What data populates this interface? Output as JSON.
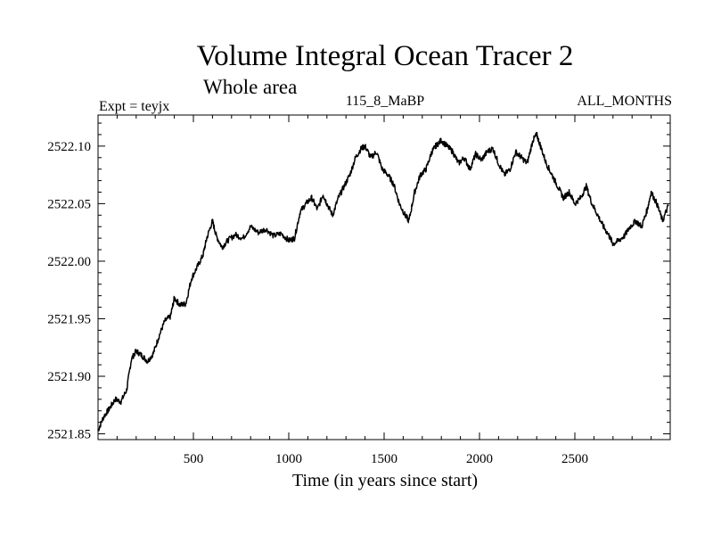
{
  "chart_data": {
    "type": "line",
    "title": "Volume Integral Ocean Tracer 2",
    "subtitle": "Whole area",
    "experiment": "Expt = teyjx",
    "period": "115_8_MaBP",
    "months": "ALL_MONTHS",
    "xlabel": "Time (in years since start)",
    "ylabel": "",
    "xlim": [
      0,
      3000
    ],
    "ylim": [
      2521.845,
      2522.127
    ],
    "xticks": [
      500,
      1000,
      1500,
      2000,
      2500
    ],
    "xtick_labels": [
      "500",
      "1000",
      "1500",
      "2000",
      "2500"
    ],
    "yticks": [
      2521.85,
      2521.9,
      2521.95,
      2522.0,
      2522.05,
      2522.1
    ],
    "ytick_labels": [
      "2521.85",
      "2521.90",
      "2521.95",
      "2522.00",
      "2522.05",
      "2522.10"
    ],
    "grid": false,
    "legend": "none",
    "series": [
      {
        "color": "#000000",
        "x": [
          0,
          30,
          60,
          90,
          120,
          150,
          175,
          200,
          230,
          260,
          290,
          320,
          350,
          380,
          400,
          430,
          460,
          490,
          520,
          550,
          570,
          600,
          620,
          650,
          680,
          720,
          760,
          800,
          840,
          880,
          920,
          960,
          1000,
          1030,
          1060,
          1090,
          1120,
          1150,
          1180,
          1200,
          1230,
          1260,
          1290,
          1320,
          1350,
          1380,
          1400,
          1430,
          1460,
          1490,
          1520,
          1550,
          1580,
          1610,
          1630,
          1660,
          1690,
          1720,
          1750,
          1770,
          1800,
          1830,
          1860,
          1890,
          1920,
          1950,
          1980,
          2010,
          2040,
          2070,
          2100,
          2130,
          2160,
          2190,
          2220,
          2250,
          2280,
          2300,
          2320,
          2350,
          2380,
          2410,
          2440,
          2470,
          2500,
          2530,
          2560,
          2590,
          2620,
          2650,
          2680,
          2700,
          2730,
          2760,
          2790,
          2820,
          2850,
          2880,
          2900,
          2930,
          2960,
          2990
        ],
        "y": [
          2521.853,
          2521.865,
          2521.872,
          2521.88,
          2521.878,
          2521.888,
          2521.915,
          2521.922,
          2521.918,
          2521.913,
          2521.92,
          2521.935,
          2521.948,
          2521.952,
          2521.968,
          2521.962,
          2521.963,
          2521.985,
          2521.995,
          2522.005,
          2522.02,
          2522.035,
          2522.022,
          2522.012,
          2522.018,
          2522.023,
          2522.02,
          2522.03,
          2522.025,
          2522.028,
          2522.022,
          2522.024,
          2522.018,
          2522.02,
          2522.043,
          2522.05,
          2522.055,
          2522.045,
          2522.058,
          2522.05,
          2522.04,
          2522.055,
          2522.065,
          2522.075,
          2522.09,
          2522.098,
          2522.1,
          2522.09,
          2522.095,
          2522.08,
          2522.075,
          2522.067,
          2522.05,
          2522.04,
          2522.035,
          2522.06,
          2522.075,
          2522.08,
          2522.095,
          2522.1,
          2522.105,
          2522.1,
          2522.095,
          2522.085,
          2522.09,
          2522.08,
          2522.093,
          2522.088,
          2522.095,
          2522.098,
          2522.085,
          2522.075,
          2522.08,
          2522.095,
          2522.09,
          2522.085,
          2522.105,
          2522.11,
          2522.1,
          2522.085,
          2522.075,
          2522.065,
          2522.055,
          2522.06,
          2522.05,
          2522.055,
          2522.065,
          2522.05,
          2522.04,
          2522.03,
          2522.022,
          2522.015,
          2522.018,
          2522.022,
          2522.03,
          2522.035,
          2522.03,
          2522.045,
          2522.06,
          2522.05,
          2522.035,
          2522.048
        ]
      }
    ]
  }
}
